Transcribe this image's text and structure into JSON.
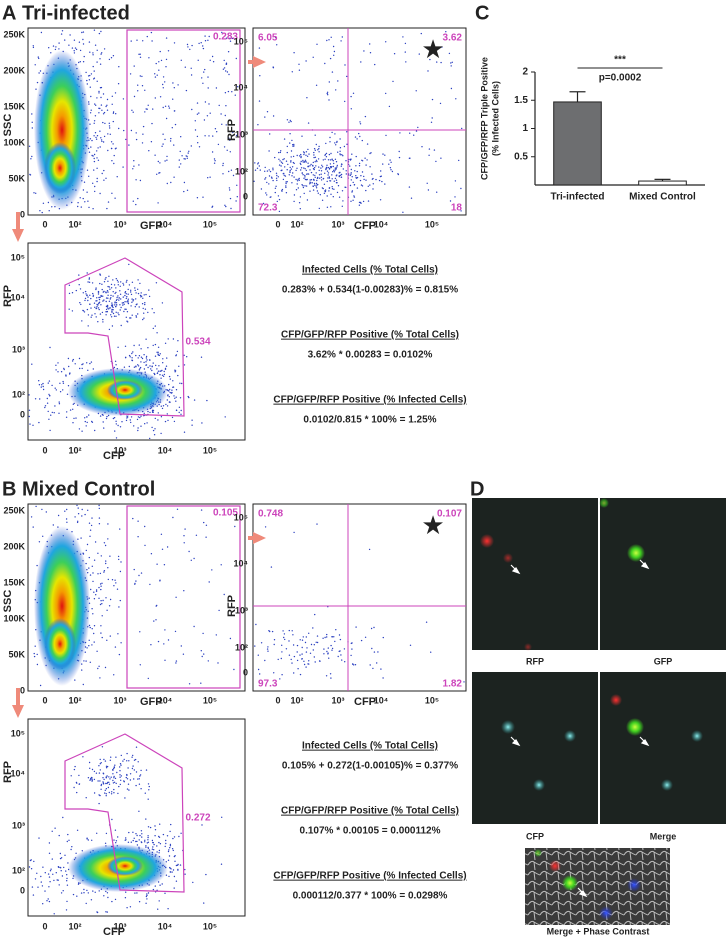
{
  "axes": {
    "ssc": "SSC",
    "gfp": "GFP",
    "rfp": "RFP",
    "cfp": "CFP",
    "ssc_ticks": [
      "250K",
      "200K",
      "150K",
      "100K",
      "50K",
      "0"
    ],
    "log_ticks": [
      "0",
      "10²",
      "10³",
      "10⁴",
      "10⁵"
    ]
  },
  "panels": [
    {
      "label": "A",
      "title": "Tri-infected",
      "gate_gfp": "0.283",
      "quadrants": {
        "top_left": "6.05",
        "top_right": "3.62",
        "bottom_left": "72.3",
        "bottom_right": "18"
      },
      "gate_rfp_cfp": "0.534",
      "calculations": [
        {
          "heading": "Infected Cells (% Total Cells)",
          "formula": "0.283% + 0.534(1-0.00283)% = 0.815%"
        },
        {
          "heading": "CFP/GFP/RFP Positive (% Total Cells)",
          "formula": "3.62% * 0.00283 = 0.0102%"
        },
        {
          "heading": "CFP/GFP/RFP Positive (% Infected Cells)",
          "formula": "0.0102/0.815 * 100% = 1.25%"
        }
      ]
    },
    {
      "label": "B",
      "title": "Mixed Control",
      "gate_gfp": "0.105",
      "quadrants": {
        "top_left": "0.748",
        "top_right": "0.107",
        "bottom_left": "97.3",
        "bottom_right": "1.82"
      },
      "gate_rfp_cfp": "0.272",
      "calculations": [
        {
          "heading": "Infected Cells (% Total Cells)",
          "formula": "0.105% + 0.272(1-0.00105)% = 0.377%"
        },
        {
          "heading": "CFP/GFP/RFP Positive (% Total Cells)",
          "formula": "0.107% * 0.00105 = 0.000112%"
        },
        {
          "heading": "CFP/GFP/RFP Positive (% Infected Cells)",
          "formula": "0.000112/0.377 * 100% = 0.0298%"
        }
      ]
    }
  ],
  "chart_data": {
    "type": "bar",
    "label": "C",
    "ylabel": [
      "CFP/GFP/RFP Triple Positive",
      "(% Infected Cells)"
    ],
    "categories": [
      "Tri-infected",
      "Mixed Control"
    ],
    "values": [
      1.47,
      0.07
    ],
    "errors": [
      0.18,
      0.03
    ],
    "colors": [
      "#6d6e70",
      "#ffffff"
    ],
    "ylim": [
      0,
      2
    ],
    "yticks": [
      0.5,
      1,
      1.5,
      2
    ],
    "annotations": [
      "***",
      "p=0.0002"
    ]
  },
  "panel_d": {
    "label": "D",
    "images": [
      "RFP",
      "GFP",
      "CFP",
      "Merge"
    ],
    "bottom": "Merge + Phase Contrast"
  }
}
